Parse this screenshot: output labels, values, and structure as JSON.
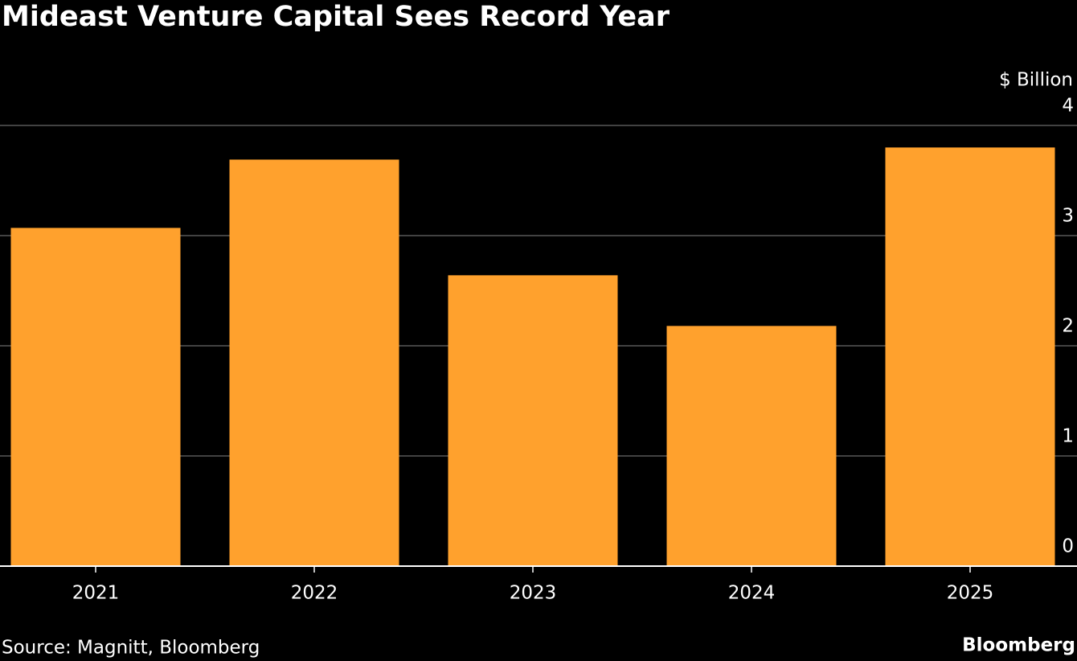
{
  "chart_data": {
    "type": "bar",
    "title": "Mideast Venture Capital Sees Record Year",
    "y_axis_label": "$ Billion",
    "categories": [
      "2021",
      "2022",
      "2023",
      "2024",
      "2025"
    ],
    "values": [
      3.07,
      3.69,
      2.64,
      2.18,
      3.8
    ],
    "color": "#ffa12d",
    "ylim": [
      0,
      4
    ],
    "yticks": [
      0,
      1,
      2,
      3,
      4
    ],
    "grid": true,
    "source": "Source: Magnitt, Bloomberg",
    "brand": "Bloomberg"
  }
}
